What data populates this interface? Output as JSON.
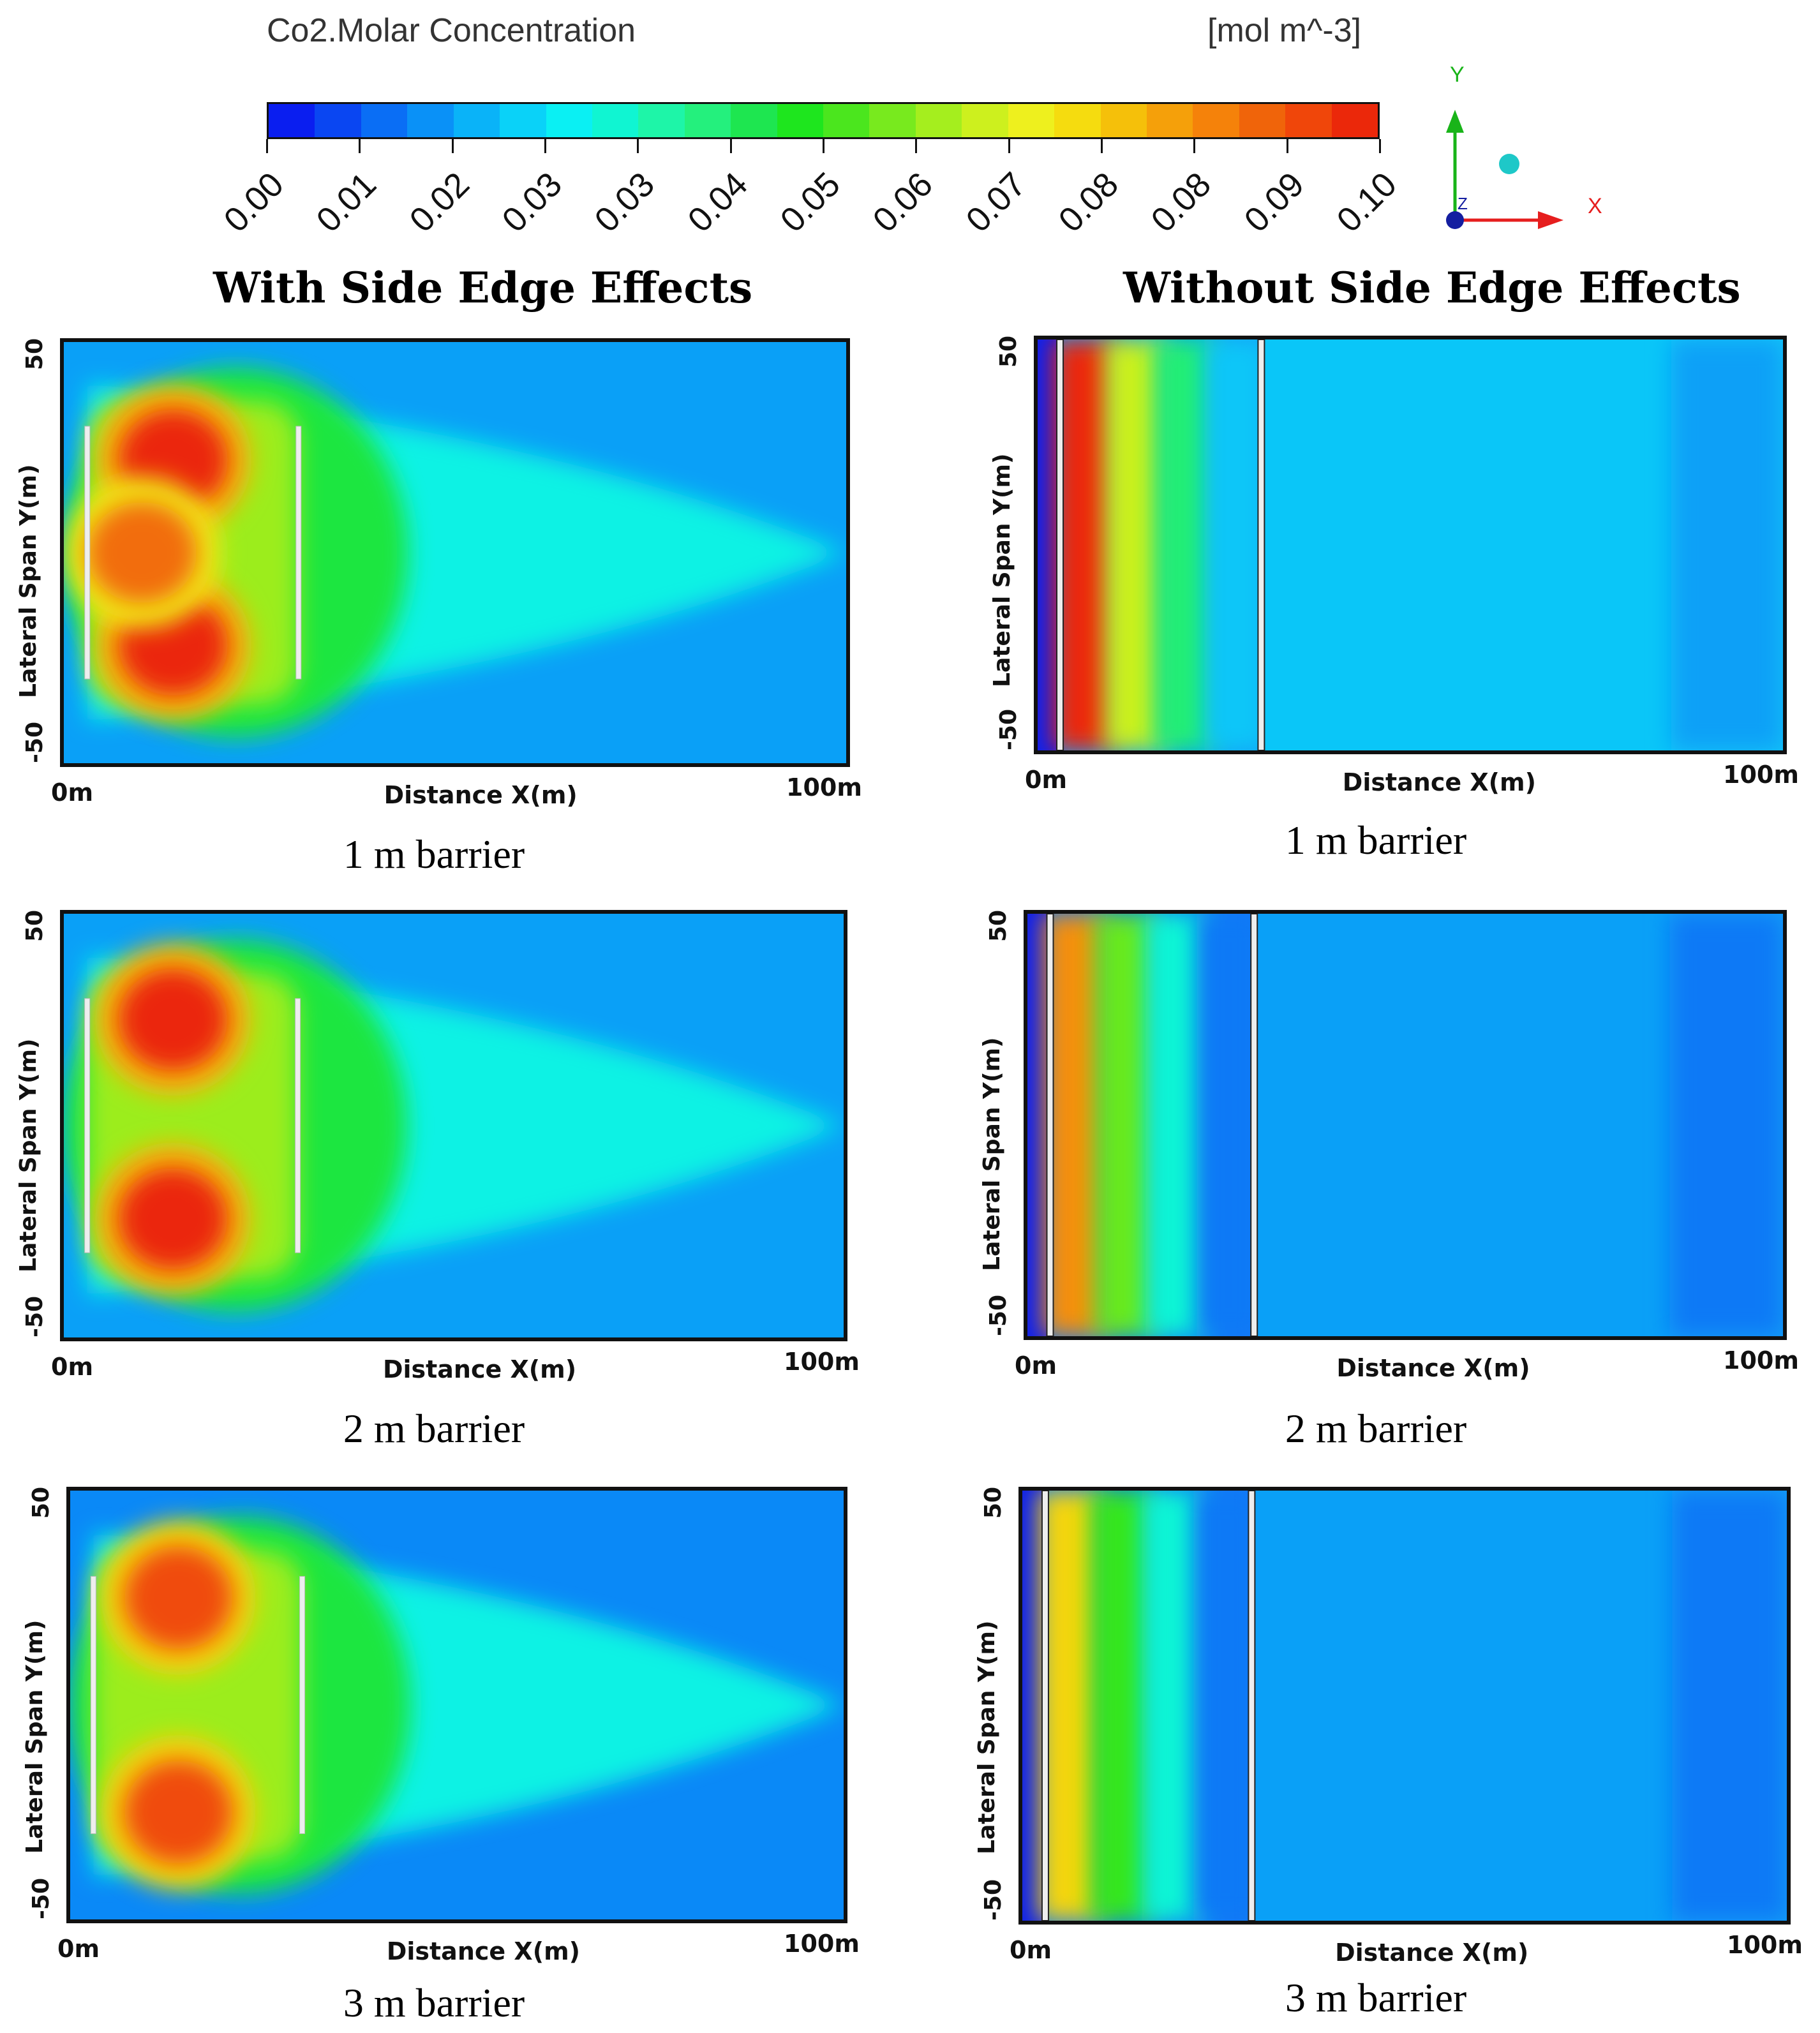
{
  "chart_data": {
    "type": "heatmap",
    "colorbar": {
      "title": "Co2.Molar Concentration",
      "unit": "[mol m^-3]",
      "range": [
        0.0,
        0.1
      ],
      "segments": 24,
      "ticks": [
        "0.00",
        "0.01",
        "0.02",
        "0.03",
        "0.03",
        "0.04",
        "0.05",
        "0.06",
        "0.07",
        "0.08",
        "0.08",
        "0.09",
        "0.10"
      ],
      "colors": [
        "#0a1ef0",
        "#0a46f2",
        "#0a6ef5",
        "#0a91f7",
        "#0ab3f8",
        "#0ad2f8",
        "#0af0f3",
        "#10f5d2",
        "#1ef5a8",
        "#24f07d",
        "#1ee650",
        "#1ee61e",
        "#4be61e",
        "#78ea1e",
        "#a5ee1e",
        "#cdf01e",
        "#eef01e",
        "#f5dc0f",
        "#f5c00a",
        "#f5a00a",
        "#f5820a",
        "#f0640a",
        "#f0460a",
        "#eb280a"
      ]
    },
    "axes_triad": {
      "x": "X",
      "y": "Y",
      "z": "Z"
    },
    "columns": [
      {
        "id": "with",
        "title": "With Side Edge Effects"
      },
      {
        "id": "without",
        "title": "Without Side Edge Effects"
      }
    ],
    "panels": [
      {
        "column": "with",
        "caption": "1 m barrier",
        "barrier_height_m": 1,
        "xlabel": "Distance X(m)",
        "x_min_label": "0m",
        "x_max_label": "100m",
        "ylabel": "Lateral Span Y(m)",
        "y_top_label": "50",
        "y_bottom_label": "-50",
        "xlim": [
          0,
          100
        ],
        "ylim": [
          -50,
          50
        ],
        "barriers_x_m": [
          3,
          30
        ],
        "barrier_y_range_m": [
          -30,
          30
        ],
        "hotspots": [
          {
            "x": 14,
            "y": 22,
            "value": 0.1
          },
          {
            "x": 14,
            "y": -22,
            "value": 0.1
          },
          {
            "x": 10,
            "y": 0,
            "value": 0.09
          }
        ],
        "background_value": 0.015
      },
      {
        "column": "without",
        "caption": "1 m barrier",
        "barrier_height_m": 1,
        "xlabel": "Distance X(m)",
        "x_min_label": "0m",
        "x_max_label": "100m",
        "ylabel": "Lateral Span Y(m)",
        "y_top_label": "50",
        "y_bottom_label": "-50",
        "xlim": [
          0,
          100
        ],
        "ylim": [
          -50,
          50
        ],
        "barriers_x_m": [
          3,
          30
        ],
        "band_values": [
          0.1,
          0.065,
          0.04,
          0.02
        ],
        "background_value": 0.015
      },
      {
        "column": "with",
        "caption": "2 m barrier",
        "barrier_height_m": 2,
        "xlabel": "Distance X(m)",
        "x_min_label": "0m",
        "x_max_label": "100m",
        "ylabel": "Lateral Span Y(m)",
        "y_top_label": "50",
        "y_bottom_label": "-50",
        "xlim": [
          0,
          100
        ],
        "ylim": [
          -50,
          50
        ],
        "barriers_x_m": [
          3,
          30
        ],
        "barrier_y_range_m": [
          -30,
          30
        ],
        "hotspots": [
          {
            "x": 14,
            "y": 25,
            "value": 0.1
          },
          {
            "x": 14,
            "y": -22,
            "value": 0.1
          }
        ],
        "background_value": 0.015
      },
      {
        "column": "without",
        "caption": "2 m barrier",
        "barrier_height_m": 2,
        "xlabel": "Distance X(m)",
        "x_min_label": "0m",
        "x_max_label": "100m",
        "ylabel": "Lateral Span Y(m)",
        "y_top_label": "50",
        "y_bottom_label": "-50",
        "xlim": [
          0,
          100
        ],
        "ylim": [
          -50,
          50
        ],
        "barriers_x_m": [
          3,
          30
        ],
        "band_values": [
          0.085,
          0.055,
          0.03,
          0.01
        ],
        "background_value": 0.01
      },
      {
        "column": "with",
        "caption": "3 m barrier",
        "barrier_height_m": 3,
        "xlabel": "Distance X(m)",
        "x_min_label": "0m",
        "x_max_label": "100m",
        "ylabel": "Lateral Span Y(m)",
        "y_top_label": "50",
        "y_bottom_label": "-50",
        "xlim": [
          0,
          100
        ],
        "ylim": [
          -50,
          50
        ],
        "barriers_x_m": [
          3,
          30
        ],
        "barrier_y_range_m": [
          -30,
          30
        ],
        "hotspots": [
          {
            "x": 14,
            "y": 25,
            "value": 0.095
          },
          {
            "x": 14,
            "y": -25,
            "value": 0.095
          }
        ],
        "background_value": 0.012
      },
      {
        "column": "without",
        "caption": "3 m barrier",
        "barrier_height_m": 3,
        "xlabel": "Distance X(m)",
        "x_min_label": "0m",
        "x_max_label": "100m",
        "ylabel": "Lateral Span Y(m)",
        "y_top_label": "50",
        "y_bottom_label": "-50",
        "xlim": [
          0,
          100
        ],
        "ylim": [
          -50,
          50
        ],
        "barriers_x_m": [
          3,
          30
        ],
        "band_values": [
          0.075,
          0.05,
          0.03,
          0.01
        ],
        "background_value": 0.01
      }
    ]
  }
}
